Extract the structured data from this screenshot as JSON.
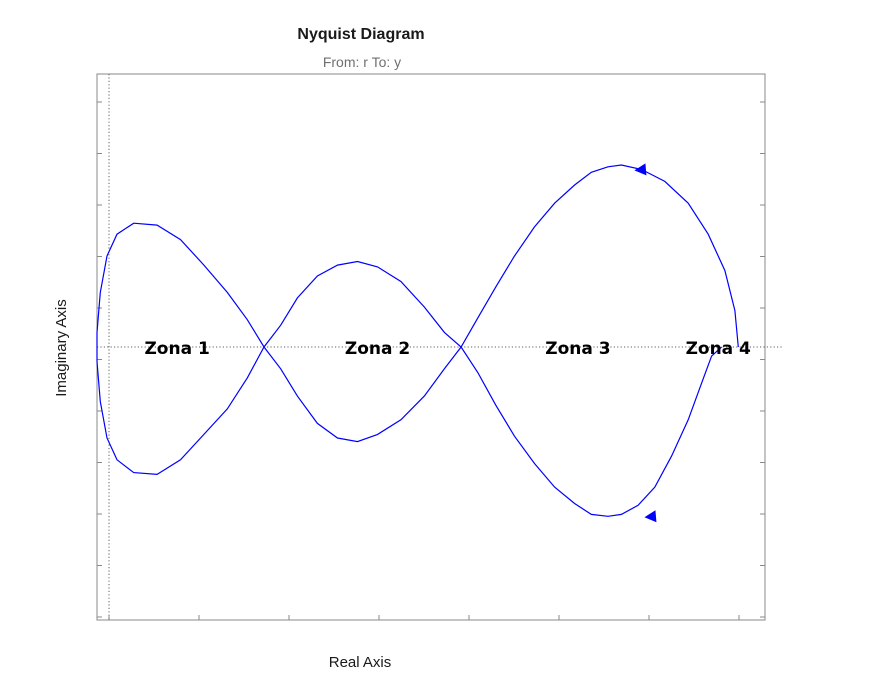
{
  "chart_data": {
    "type": "line",
    "title": "Nyquist Diagram",
    "subtitle": "From: r  To: y",
    "xlabel": "Real Axis",
    "ylabel": "Imaginary Axis",
    "grid": false,
    "x_tick_count": 8,
    "y_tick_count": 11,
    "series_color": "#0000ff",
    "reference_line_color": "#606060",
    "annotations": [
      {
        "text": "Zona 1",
        "x": 0.12,
        "y": 0.0
      },
      {
        "text": "Zona 2",
        "x": 0.42,
        "y": 0.0
      },
      {
        "text": "Zona 3",
        "x": 0.72,
        "y": 0.0
      },
      {
        "text": "Zona 4",
        "x": 0.93,
        "y": 0.0
      }
    ],
    "series": [
      {
        "points": [
          [
            0.96,
            0.0
          ],
          [
            0.955,
            0.2
          ],
          [
            0.94,
            0.42
          ],
          [
            0.915,
            0.62
          ],
          [
            0.885,
            0.79
          ],
          [
            0.85,
            0.91
          ],
          [
            0.815,
            0.976
          ],
          [
            0.785,
            1.0
          ],
          [
            0.765,
            0.99
          ],
          [
            0.74,
            0.96
          ],
          [
            0.715,
            0.89
          ],
          [
            0.685,
            0.79
          ],
          [
            0.655,
            0.66
          ],
          [
            0.625,
            0.5
          ],
          [
            0.597,
            0.33
          ],
          [
            0.57,
            0.16
          ],
          [
            0.545,
            0.0
          ],
          [
            0.52,
            -0.12
          ],
          [
            0.49,
            -0.27
          ],
          [
            0.455,
            -0.4
          ],
          [
            0.42,
            -0.48
          ],
          [
            0.39,
            -0.52
          ],
          [
            0.36,
            -0.5
          ],
          [
            0.33,
            -0.42
          ],
          [
            0.3,
            -0.27
          ],
          [
            0.275,
            -0.12
          ],
          [
            0.25,
            0.0
          ],
          [
            0.225,
            0.15
          ],
          [
            0.195,
            0.3
          ],
          [
            0.16,
            0.45
          ],
          [
            0.125,
            0.59
          ],
          [
            0.09,
            0.67
          ],
          [
            0.055,
            0.68
          ],
          [
            0.03,
            0.62
          ],
          [
            0.015,
            0.5
          ],
          [
            0.005,
            0.3
          ],
          [
            0.0,
            0.08
          ],
          [
            0.0,
            -0.08
          ],
          [
            0.005,
            -0.3
          ],
          [
            0.015,
            -0.5
          ],
          [
            0.03,
            -0.62
          ],
          [
            0.055,
            -0.69
          ],
          [
            0.09,
            -0.7
          ],
          [
            0.125,
            -0.62
          ],
          [
            0.16,
            -0.48
          ],
          [
            0.195,
            -0.34
          ],
          [
            0.225,
            -0.17
          ],
          [
            0.25,
            0.0
          ],
          [
            0.275,
            0.12
          ],
          [
            0.3,
            0.27
          ],
          [
            0.33,
            0.39
          ],
          [
            0.36,
            0.45
          ],
          [
            0.39,
            0.47
          ],
          [
            0.42,
            0.44
          ],
          [
            0.455,
            0.36
          ],
          [
            0.49,
            0.22
          ],
          [
            0.52,
            0.08
          ],
          [
            0.545,
            0.0
          ],
          [
            0.57,
            -0.14
          ],
          [
            0.597,
            -0.32
          ],
          [
            0.625,
            -0.49
          ],
          [
            0.655,
            -0.64
          ],
          [
            0.685,
            -0.77
          ],
          [
            0.715,
            -0.86
          ],
          [
            0.74,
            -0.92
          ],
          [
            0.765,
            -0.93
          ],
          [
            0.785,
            -0.92
          ],
          [
            0.81,
            -0.87
          ],
          [
            0.835,
            -0.77
          ],
          [
            0.86,
            -0.6
          ],
          [
            0.885,
            -0.4
          ],
          [
            0.905,
            -0.2
          ],
          [
            0.92,
            -0.05
          ],
          [
            0.935,
            0.0
          ]
        ],
        "arrows": [
          {
            "x": 0.815,
            "y": 0.976,
            "direction": "left"
          },
          {
            "x": 0.83,
            "y": -0.93,
            "direction": "left"
          }
        ]
      }
    ],
    "xlim": [
      0.0,
      1.0
    ],
    "ylim": [
      -1.5,
      1.5
    ]
  }
}
